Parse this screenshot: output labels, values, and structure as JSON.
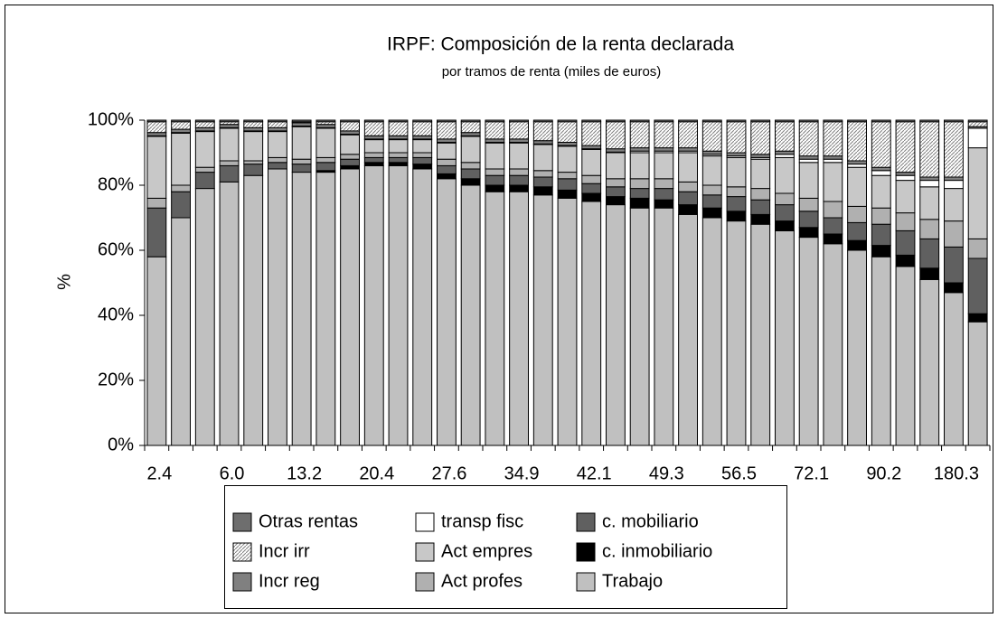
{
  "chart_data": {
    "type": "stacked_bar",
    "title": "IRPF: Composición de la renta declarada",
    "subtitle": "por tramos de renta (miles de euros)",
    "y_label": "%",
    "categories": [
      "2.4",
      null,
      null,
      "6.0",
      null,
      null,
      "13.2",
      null,
      null,
      "20.4",
      null,
      null,
      "27.6",
      null,
      null,
      "34.9",
      null,
      null,
      "42.1",
      null,
      null,
      "49.3",
      null,
      null,
      "56.5",
      null,
      null,
      "72.1",
      null,
      null,
      "90.2",
      null,
      null,
      "180.3",
      null
    ],
    "ylim": [
      0,
      100
    ],
    "yticks": [
      {
        "value": 0,
        "label": "0%"
      },
      {
        "value": 20,
        "label": "20%"
      },
      {
        "value": 40,
        "label": "40%"
      },
      {
        "value": 60,
        "label": "60%"
      },
      {
        "value": 80,
        "label": "80%"
      },
      {
        "value": 100,
        "label": "100%"
      }
    ],
    "series": [
      {
        "name": "Trabajo",
        "color": "#c0c0c0",
        "values": [
          58,
          70,
          79,
          81,
          83,
          85,
          84,
          84,
          85,
          86,
          86,
          85,
          82,
          80,
          78,
          78,
          77,
          76,
          75,
          74,
          73,
          73,
          71,
          70,
          69,
          68,
          66,
          64,
          62,
          60,
          58,
          55,
          51,
          47,
          38
        ]
      },
      {
        "name": "c. inmobiliario",
        "color": "#000000",
        "values": [
          0,
          0,
          0,
          0,
          0,
          0,
          0,
          0.5,
          1,
          1,
          1,
          1.5,
          1.5,
          2,
          2,
          2,
          2.5,
          2.5,
          2.5,
          2.5,
          3,
          2.5,
          3,
          3,
          3,
          3,
          3,
          3,
          3,
          3,
          3.5,
          3.5,
          3.5,
          3,
          2.5
        ]
      },
      {
        "name": "c. mobiliario",
        "color": "#606060",
        "values": [
          15,
          8,
          5,
          5,
          3.5,
          2,
          2.5,
          2.5,
          2,
          1.5,
          1.5,
          2,
          2.5,
          3,
          3,
          3,
          3,
          3.5,
          3,
          3,
          3,
          3.5,
          4,
          4,
          4.5,
          4.5,
          5,
          5,
          5,
          5.5,
          6.5,
          7.5,
          9,
          11,
          17
        ]
      },
      {
        "name": "Act profes",
        "color": "#b0b0b0",
        "values": [
          3,
          2,
          1.5,
          1.5,
          1,
          1.5,
          1.5,
          1.5,
          1.5,
          1.5,
          1.5,
          1.5,
          2,
          2,
          2,
          2,
          2,
          2,
          2.5,
          2.5,
          3,
          3,
          3,
          3,
          3,
          3.5,
          3.5,
          4,
          5,
          5,
          5,
          5.5,
          6,
          8,
          6
        ]
      },
      {
        "name": "Act empres",
        "color": "#c8c8c8",
        "values": [
          19,
          16,
          11,
          10,
          9,
          8,
          10,
          9,
          6,
          4,
          4,
          4,
          5,
          8,
          8,
          8,
          8,
          8,
          8,
          8,
          8,
          8,
          9,
          9,
          9,
          9,
          11,
          11,
          12,
          12,
          10,
          10,
          10,
          10,
          28
        ]
      },
      {
        "name": "transp fisc",
        "color": "#ffffff",
        "values": [
          0.2,
          0.2,
          0.2,
          0.2,
          0.2,
          0.2,
          0.2,
          0.2,
          0.2,
          0.2,
          0.2,
          0.2,
          0.2,
          0.2,
          0.2,
          0.2,
          0.2,
          0.2,
          0.2,
          0.2,
          0.5,
          0.5,
          0.5,
          0.5,
          0.5,
          0.5,
          1,
          1,
          1,
          1,
          1.5,
          1.5,
          2,
          2.5,
          6
        ]
      },
      {
        "name": "Incr reg",
        "color": "#808080",
        "values": [
          1,
          1,
          1,
          1,
          1,
          1,
          1,
          1,
          1,
          1,
          1,
          1,
          1,
          1,
          1,
          1,
          1,
          1,
          1,
          1,
          1,
          1,
          1,
          1,
          1,
          1,
          1,
          1,
          1,
          1,
          1,
          1,
          1,
          1,
          0.5
        ]
      },
      {
        "name": "Incr irr",
        "color": "#e6e6e6",
        "pattern": "hatch",
        "values": [
          3.3,
          2.3,
          1.8,
          0.8,
          1.8,
          1.8,
          0.3,
          0.8,
          2.8,
          4.3,
          4.3,
          4.3,
          5.3,
          3.3,
          5.3,
          5.3,
          5.8,
          6.3,
          7.3,
          8.3,
          8,
          8,
          8,
          9,
          9.5,
          10,
          9,
          10.5,
          10.5,
          12,
          14,
          15.5,
          17,
          17,
          1.5
        ]
      },
      {
        "name": "Otras rentas",
        "color": "#6e6e6e",
        "values": [
          0.5,
          0.5,
          0.5,
          0.5,
          0.5,
          0.5,
          0.5,
          0.5,
          0.5,
          0.5,
          0.5,
          0.5,
          0.5,
          0.5,
          0.5,
          0.5,
          0.5,
          0.5,
          0.5,
          0.5,
          0.5,
          0.5,
          0.5,
          0.5,
          0.5,
          0.5,
          0.5,
          0.5,
          0.5,
          0.5,
          0.5,
          0.5,
          0.5,
          0.5,
          0.5
        ]
      }
    ]
  }
}
